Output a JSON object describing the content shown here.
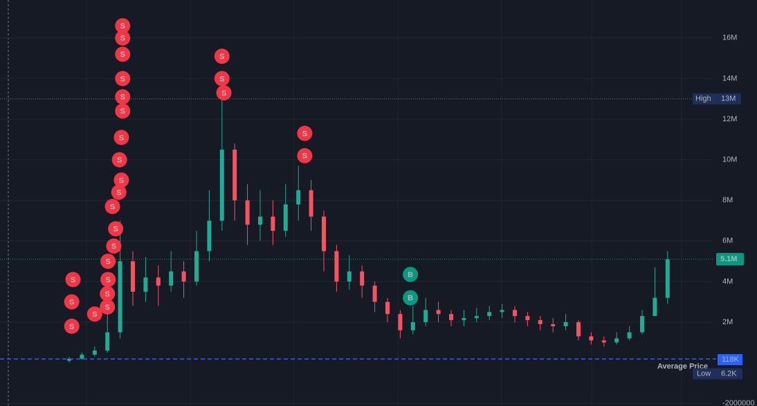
{
  "chart_data": {
    "type": "candlestick",
    "colors": {
      "up": "#22ab94",
      "down": "#f7525f",
      "sell": "#f23645",
      "buy": "#089981"
    },
    "ylim": [
      -2130000,
      17870000
    ],
    "yticks": [
      -2000000,
      {
        "value": 2000000,
        "label": "2M"
      },
      {
        "value": 4000000,
        "label": "4M"
      },
      {
        "value": 6000000,
        "label": "6M"
      },
      {
        "value": 8000000,
        "label": "8M"
      },
      {
        "value": 10000000,
        "label": "10M"
      },
      {
        "value": 12000000,
        "label": "12M"
      },
      {
        "value": 14000000,
        "label": "14M"
      },
      {
        "value": 16000000,
        "label": "16M"
      }
    ],
    "grid": true,
    "series": [
      {
        "open": [
          100000,
          200000,
          400000,
          600000,
          1500000,
          5000000,
          3500000,
          4200000,
          3800000,
          4500000,
          4000000,
          5500000,
          7000000,
          10500000,
          8000000,
          6800000,
          7200000,
          6500000,
          7800000,
          8500000,
          7200000,
          5500000,
          4000000,
          4500000,
          3800000,
          3000000,
          2400000,
          1600000,
          2000000,
          2600000,
          2400000,
          2100000,
          2200000,
          2300000,
          2500000,
          2600000,
          2300000,
          2100000,
          1900000,
          1800000,
          2000000,
          1300000,
          1100000,
          1000000,
          1200000,
          1500000,
          2300000,
          3200000
        ],
        "high": [
          300000,
          500000,
          800000,
          2500000,
          7000000,
          5500000,
          5200000,
          4800000,
          5500000,
          5000000,
          6500000,
          8500000,
          13000000,
          10800000,
          8800000,
          8500000,
          8000000,
          8800000,
          9700000,
          9000000,
          7500000,
          5800000,
          5300000,
          4800000,
          4000000,
          3200000,
          2600000,
          2800000,
          3200000,
          3000000,
          2600000,
          2600000,
          2700000,
          2800000,
          2900000,
          2800000,
          2500000,
          2300000,
          2200000,
          2400000,
          2100000,
          1500000,
          1300000,
          1500000,
          1800000,
          2600000,
          4700000,
          5500000
        ],
        "low": [
          6200,
          150000,
          300000,
          500000,
          1200000,
          2800000,
          3000000,
          2800000,
          3500000,
          3200000,
          3800000,
          5000000,
          6500000,
          7000000,
          5800000,
          6000000,
          5800000,
          6200000,
          7000000,
          6500000,
          4500000,
          3500000,
          3600000,
          3200000,
          2500000,
          2000000,
          1200000,
          1400000,
          1800000,
          2000000,
          1800000,
          1800000,
          2000000,
          2100000,
          2200000,
          2000000,
          1800000,
          1600000,
          1500000,
          1600000,
          1100000,
          900000,
          800000,
          900000,
          1100000,
          1400000,
          2300000,
          2900000
        ],
        "close": [
          200000,
          400000,
          600000,
          1500000,
          5000000,
          3500000,
          4200000,
          3800000,
          4500000,
          4000000,
          5500000,
          7000000,
          10500000,
          8000000,
          6800000,
          7200000,
          6500000,
          7800000,
          8500000,
          7200000,
          5500000,
          4000000,
          4500000,
          3800000,
          3000000,
          2400000,
          1600000,
          2000000,
          2600000,
          2400000,
          2100000,
          2200000,
          2300000,
          2500000,
          2600000,
          2300000,
          2100000,
          1900000,
          1800000,
          2000000,
          1300000,
          1100000,
          1000000,
          1200000,
          1500000,
          2300000,
          3200000,
          5100000
        ]
      }
    ],
    "markers": [
      {
        "label": "S",
        "x": 0.3,
        "price": 4100000
      },
      {
        "label": "S",
        "x": 0.2,
        "price": 3000000
      },
      {
        "label": "S",
        "x": 0.2,
        "price": 1800000
      },
      {
        "label": "S",
        "x": 2,
        "price": 2400000
      },
      {
        "label": "S",
        "x": 3,
        "price": 2750000
      },
      {
        "label": "S",
        "x": 3,
        "price": 3400000
      },
      {
        "label": "S",
        "x": 3.05,
        "price": 4100000
      },
      {
        "label": "S",
        "x": 3.05,
        "price": 5000000
      },
      {
        "label": "S",
        "x": 3.5,
        "price": 5750000
      },
      {
        "label": "S",
        "x": 3.65,
        "price": 6600000
      },
      {
        "label": "S",
        "x": 3.4,
        "price": 7700000
      },
      {
        "label": "S",
        "x": 3.9,
        "price": 8400000
      },
      {
        "label": "S",
        "x": 4.1,
        "price": 9000000
      },
      {
        "label": "S",
        "x": 3.95,
        "price": 10000000
      },
      {
        "label": "S",
        "x": 4.1,
        "price": 11100000
      },
      {
        "label": "S",
        "x": 4.2,
        "price": 12400000
      },
      {
        "label": "S",
        "x": 4.2,
        "price": 13100000
      },
      {
        "label": "S",
        "x": 4.2,
        "price": 14000000
      },
      {
        "label": "S",
        "x": 4.2,
        "price": 15200000
      },
      {
        "label": "S",
        "x": 4.2,
        "price": 16000000
      },
      {
        "label": "S",
        "x": 4.2,
        "price": 16600000
      },
      {
        "label": "S",
        "x": 12,
        "price": 15100000
      },
      {
        "label": "S",
        "x": 12,
        "price": 14000000
      },
      {
        "label": "S",
        "x": 12.15,
        "price": 13300000
      },
      {
        "label": "S",
        "x": 18.5,
        "price": 11300000
      },
      {
        "label": "S",
        "x": 18.5,
        "price": 10200000
      },
      {
        "label": "B",
        "x": 26.8,
        "price": 4350000
      },
      {
        "label": "B",
        "x": 26.8,
        "price": 3200000
      }
    ],
    "price_lines": [
      {
        "label": "High",
        "value": 13000000,
        "value_label": "13M"
      },
      {
        "value": 5100000,
        "value_label": "5.1M"
      },
      {
        "label": "Average Price",
        "value": 118000,
        "value_label": "118K"
      },
      {
        "label": "Low",
        "value": 6200,
        "value_label": "6.2K"
      }
    ]
  }
}
